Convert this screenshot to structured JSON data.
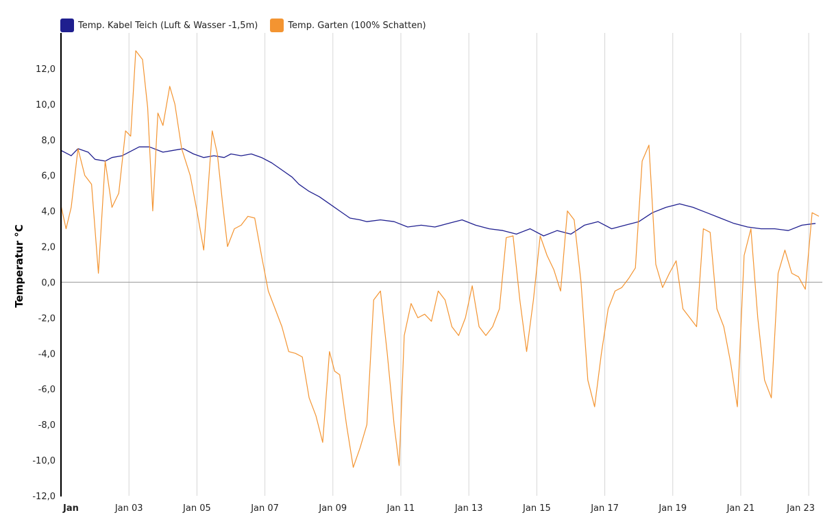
{
  "chart_data": {
    "type": "line",
    "ylabel": "Temperatur °C",
    "xlabel": "",
    "ylim": [
      -12,
      14
    ],
    "xlim": [
      1.0,
      23.4
    ],
    "yticks": [
      -12,
      -10,
      -8,
      -6,
      -4,
      -2,
      0,
      2,
      4,
      6,
      8,
      10,
      12
    ],
    "ytick_labels": [
      "-12,0",
      "-10,0",
      "-8,0",
      "-6,0",
      "-4,0",
      "-2,0",
      "0,0",
      "2,0",
      "4,0",
      "6,0",
      "8,0",
      "10,0",
      "12,0"
    ],
    "xticks": [
      1,
      3,
      5,
      7,
      9,
      11,
      13,
      15,
      17,
      19,
      21,
      23
    ],
    "xtick_labels": [
      "Jan",
      "Jan 03",
      "Jan 05",
      "Jan 07",
      "Jan 09",
      "Jan 11",
      "Jan 13",
      "Jan 15",
      "Jan 17",
      "Jan 19",
      "Jan 21",
      "Jan 23"
    ],
    "grid": "vertical",
    "legend_position": "top-left",
    "series": [
      {
        "name": "Temp. Kabel Teich (Luft & Wasser -1,5m)",
        "color": "#1f1f8f",
        "x": [
          1.0,
          1.3,
          1.5,
          1.8,
          2.0,
          2.3,
          2.5,
          2.8,
          3.0,
          3.3,
          3.6,
          4.0,
          4.3,
          4.6,
          4.9,
          5.2,
          5.5,
          5.8,
          6.0,
          6.3,
          6.6,
          6.9,
          7.2,
          7.5,
          7.8,
          8.0,
          8.3,
          8.6,
          8.9,
          9.2,
          9.5,
          9.8,
          10.0,
          10.4,
          10.8,
          11.2,
          11.6,
          12.0,
          12.4,
          12.8,
          13.2,
          13.6,
          14.0,
          14.4,
          14.8,
          15.2,
          15.6,
          16.0,
          16.4,
          16.8,
          17.2,
          17.6,
          18.0,
          18.4,
          18.8,
          19.2,
          19.6,
          20.0,
          20.4,
          20.8,
          21.2,
          21.6,
          22.0,
          22.4,
          22.8,
          23.2
        ],
        "y": [
          7.4,
          7.1,
          7.5,
          7.3,
          6.9,
          6.8,
          7.0,
          7.1,
          7.3,
          7.6,
          7.6,
          7.3,
          7.4,
          7.5,
          7.2,
          7.0,
          7.1,
          7.0,
          7.2,
          7.1,
          7.2,
          7.0,
          6.7,
          6.3,
          5.9,
          5.5,
          5.1,
          4.8,
          4.4,
          4.0,
          3.6,
          3.5,
          3.4,
          3.5,
          3.4,
          3.1,
          3.2,
          3.1,
          3.3,
          3.5,
          3.2,
          3.0,
          2.9,
          2.7,
          3.0,
          2.6,
          2.9,
          2.7,
          3.2,
          3.4,
          3.0,
          3.2,
          3.4,
          3.9,
          4.2,
          4.4,
          4.2,
          3.9,
          3.6,
          3.3,
          3.1,
          3.0,
          3.0,
          2.9,
          3.2,
          3.3
        ]
      },
      {
        "name": "Temp. Garten (100% Schatten)",
        "color": "#f39431",
        "x": [
          1.0,
          1.15,
          1.3,
          1.5,
          1.7,
          1.9,
          2.1,
          2.3,
          2.5,
          2.7,
          2.9,
          3.05,
          3.2,
          3.4,
          3.55,
          3.7,
          3.85,
          4.0,
          4.2,
          4.35,
          4.55,
          4.8,
          5.0,
          5.2,
          5.45,
          5.6,
          5.75,
          5.9,
          6.1,
          6.3,
          6.5,
          6.7,
          6.9,
          7.1,
          7.3,
          7.5,
          7.7,
          7.9,
          8.1,
          8.3,
          8.5,
          8.7,
          8.9,
          9.05,
          9.2,
          9.4,
          9.6,
          9.8,
          10.0,
          10.2,
          10.4,
          10.6,
          10.8,
          10.95,
          11.1,
          11.3,
          11.5,
          11.7,
          11.9,
          12.1,
          12.3,
          12.5,
          12.7,
          12.9,
          13.1,
          13.3,
          13.5,
          13.7,
          13.9,
          14.1,
          14.3,
          14.5,
          14.7,
          14.9,
          15.1,
          15.3,
          15.5,
          15.7,
          15.9,
          16.1,
          16.3,
          16.5,
          16.7,
          16.9,
          17.1,
          17.3,
          17.5,
          17.7,
          17.9,
          18.1,
          18.3,
          18.5,
          18.7,
          18.9,
          19.1,
          19.3,
          19.5,
          19.7,
          19.9,
          20.1,
          20.3,
          20.5,
          20.7,
          20.9,
          21.1,
          21.3,
          21.5,
          21.7,
          21.9,
          22.1,
          22.3,
          22.5,
          22.7,
          22.9,
          23.1,
          23.3
        ],
        "y": [
          4.3,
          3.0,
          4.2,
          7.5,
          6.0,
          5.5,
          0.5,
          6.8,
          4.2,
          5.0,
          8.5,
          8.2,
          13.0,
          12.5,
          9.8,
          4.0,
          9.5,
          8.8,
          11.0,
          10.0,
          7.5,
          6.0,
          4.0,
          1.8,
          8.5,
          7.2,
          4.5,
          2.0,
          3.0,
          3.2,
          3.7,
          3.6,
          1.5,
          -0.5,
          -1.5,
          -2.5,
          -3.9,
          -4.0,
          -4.2,
          -6.5,
          -7.5,
          -9.0,
          -3.9,
          -5.0,
          -5.2,
          -8.0,
          -10.4,
          -9.3,
          -8.0,
          -1.0,
          -0.5,
          -4.0,
          -8.0,
          -10.3,
          -3.0,
          -1.2,
          -2.0,
          -1.8,
          -2.2,
          -0.5,
          -1.0,
          -2.5,
          -3.0,
          -2.0,
          -0.2,
          -2.5,
          -3.0,
          -2.5,
          -1.5,
          2.5,
          2.6,
          -1.0,
          -3.9,
          -1.0,
          2.6,
          1.5,
          0.7,
          -0.5,
          4.0,
          3.5,
          0.0,
          -5.5,
          -7.0,
          -4.0,
          -1.5,
          -0.5,
          -0.3,
          0.2,
          0.8,
          6.8,
          7.7,
          1.0,
          -0.3,
          0.5,
          1.2,
          -1.5,
          -2.0,
          -2.5,
          3.0,
          2.8,
          -1.5,
          -2.5,
          -4.5,
          -7.0,
          1.5,
          3.0,
          -2.0,
          -5.5,
          -6.5,
          0.5,
          1.8,
          0.5,
          0.3,
          -0.4,
          3.9,
          3.7
        ]
      }
    ]
  }
}
